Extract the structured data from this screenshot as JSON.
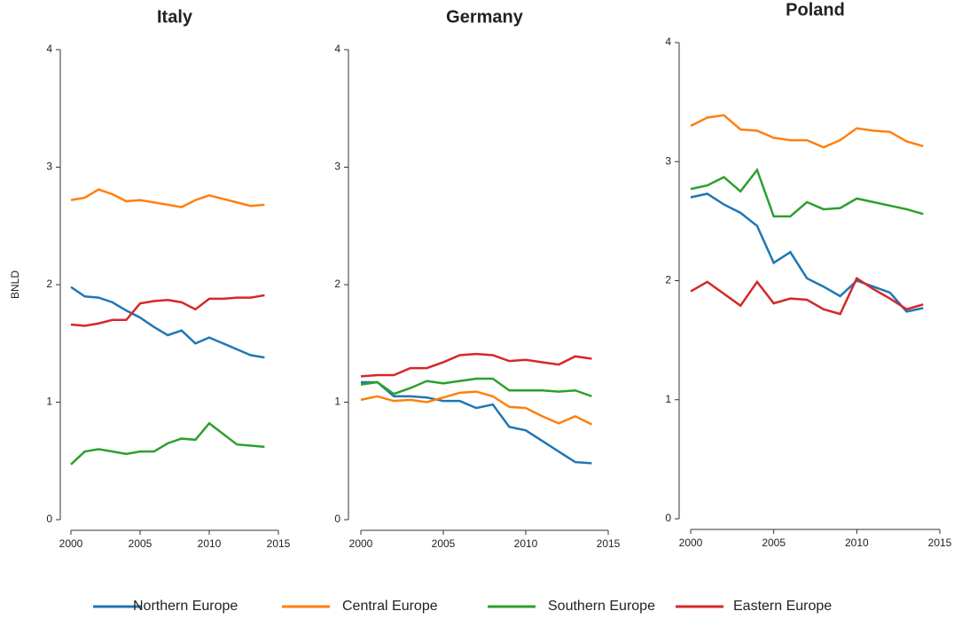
{
  "chart_data": [
    {
      "type": "line",
      "title": "Italy",
      "ylabel": "BNLD",
      "x": [
        2000,
        2001,
        2002,
        2003,
        2004,
        2005,
        2006,
        2007,
        2008,
        2009,
        2010,
        2011,
        2012,
        2013,
        2014
      ],
      "xlim": [
        2000,
        2015
      ],
      "xticks": [
        2000,
        2005,
        2010,
        2015
      ],
      "ylim": [
        0,
        4
      ],
      "yticks": [
        0,
        1,
        2,
        3,
        4
      ],
      "series": [
        {
          "name": "Northern Europe",
          "color": "#1f77b4",
          "values": [
            1.98,
            1.9,
            1.89,
            1.85,
            1.78,
            1.72,
            1.64,
            1.57,
            1.61,
            1.5,
            1.55,
            1.5,
            1.45,
            1.4,
            1.38
          ]
        },
        {
          "name": "Central Europe",
          "color": "#ff7f0e",
          "values": [
            2.72,
            2.74,
            2.81,
            2.77,
            2.71,
            2.72,
            2.7,
            2.68,
            2.66,
            2.72,
            2.76,
            2.73,
            2.7,
            2.67,
            2.68
          ]
        },
        {
          "name": "Southern Europe",
          "color": "#2ca02c",
          "values": [
            0.47,
            0.58,
            0.6,
            0.58,
            0.56,
            0.58,
            0.58,
            0.65,
            0.69,
            0.68,
            0.82,
            0.73,
            0.64,
            0.63,
            0.62
          ]
        },
        {
          "name": "Eastern Europe",
          "color": "#d62728",
          "values": [
            1.66,
            1.65,
            1.67,
            1.7,
            1.7,
            1.84,
            1.86,
            1.87,
            1.85,
            1.79,
            1.88,
            1.88,
            1.89,
            1.89,
            1.91
          ]
        }
      ]
    },
    {
      "type": "line",
      "title": "Germany",
      "x": [
        2000,
        2001,
        2002,
        2003,
        2004,
        2005,
        2006,
        2007,
        2008,
        2009,
        2010,
        2011,
        2012,
        2013,
        2014
      ],
      "xlim": [
        2000,
        2015
      ],
      "xticks": [
        2000,
        2005,
        2010,
        2015
      ],
      "ylim": [
        0,
        4
      ],
      "yticks": [
        0,
        1,
        2,
        3,
        4
      ],
      "series": [
        {
          "name": "Northern Europe",
          "color": "#1f77b4",
          "values": [
            1.17,
            1.17,
            1.05,
            1.05,
            1.04,
            1.01,
            1.01,
            0.95,
            0.98,
            0.79,
            0.76,
            0.67,
            0.58,
            0.49,
            0.48
          ]
        },
        {
          "name": "Central Europe",
          "color": "#ff7f0e",
          "values": [
            1.02,
            1.05,
            1.01,
            1.02,
            1.0,
            1.04,
            1.08,
            1.09,
            1.05,
            0.96,
            0.95,
            0.88,
            0.82,
            0.88,
            0.81
          ]
        },
        {
          "name": "Southern Europe",
          "color": "#2ca02c",
          "values": [
            1.15,
            1.17,
            1.07,
            1.12,
            1.18,
            1.16,
            1.18,
            1.2,
            1.2,
            1.1,
            1.1,
            1.1,
            1.09,
            1.1,
            1.05
          ]
        },
        {
          "name": "Eastern Europe",
          "color": "#d62728",
          "values": [
            1.22,
            1.23,
            1.23,
            1.29,
            1.29,
            1.34,
            1.4,
            1.41,
            1.4,
            1.35,
            1.36,
            1.34,
            1.32,
            1.39,
            1.37
          ]
        }
      ]
    },
    {
      "type": "line",
      "title": "Poland",
      "x": [
        2000,
        2001,
        2002,
        2003,
        2004,
        2005,
        2006,
        2007,
        2008,
        2009,
        2010,
        2011,
        2012,
        2013,
        2014
      ],
      "xlim": [
        2000,
        2015
      ],
      "xticks": [
        2000,
        2005,
        2010,
        2015
      ],
      "ylim": [
        0,
        4
      ],
      "yticks": [
        0,
        1,
        2,
        3,
        4
      ],
      "series": [
        {
          "name": "Northern Europe",
          "color": "#1f77b4",
          "values": [
            2.7,
            2.73,
            2.64,
            2.57,
            2.46,
            2.15,
            2.24,
            2.02,
            1.95,
            1.87,
            2.0,
            1.95,
            1.9,
            1.74,
            1.77
          ]
        },
        {
          "name": "Central Europe",
          "color": "#ff7f0e",
          "values": [
            3.3,
            3.37,
            3.39,
            3.27,
            3.26,
            3.2,
            3.18,
            3.18,
            3.12,
            3.18,
            3.28,
            3.26,
            3.25,
            3.17,
            3.13
          ]
        },
        {
          "name": "Southern Europe",
          "color": "#2ca02c",
          "values": [
            2.77,
            2.8,
            2.87,
            2.75,
            2.93,
            2.54,
            2.54,
            2.66,
            2.6,
            2.61,
            2.69,
            2.66,
            2.63,
            2.6,
            2.56
          ]
        },
        {
          "name": "Eastern Europe",
          "color": "#d62728",
          "values": [
            1.91,
            1.99,
            1.89,
            1.79,
            1.99,
            1.81,
            1.85,
            1.84,
            1.76,
            1.72,
            2.02,
            1.93,
            1.85,
            1.76,
            1.8
          ]
        }
      ]
    }
  ]
}
